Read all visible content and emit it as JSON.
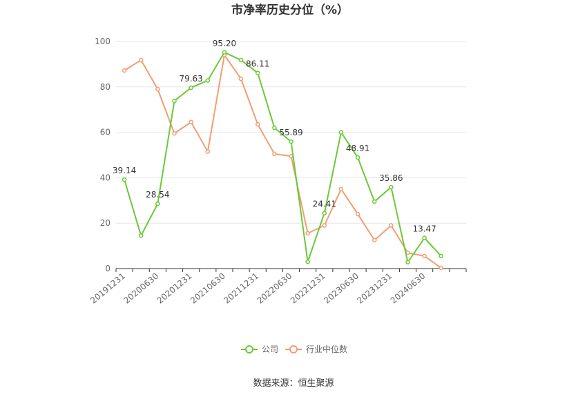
{
  "chart_data": {
    "type": "line",
    "title": "市净率历史分位（%）",
    "source": "数据来源：恒生聚源",
    "ylim": [
      0,
      100
    ],
    "yticks": [
      0,
      20,
      40,
      60,
      80,
      100
    ],
    "grid": true,
    "legend_position": "bottom",
    "x": [
      "20191231",
      "20200331",
      "20200630",
      "20200930",
      "20201231",
      "20210331",
      "20210630",
      "20210930",
      "20211231",
      "20220331",
      "20220630",
      "20220930",
      "20221231",
      "20230331",
      "20230630",
      "20230930",
      "20231231",
      "20240331",
      "20240630",
      "20240930",
      "20241231"
    ],
    "x_tick_labels": [
      "20191231",
      "20200630",
      "20201231",
      "20210630",
      "20211231",
      "20220630",
      "20221231",
      "20230630",
      "20231231",
      "20240630"
    ],
    "series": [
      {
        "name": "公司",
        "color": "#6bc936",
        "values": [
          39.14,
          14.5,
          28.54,
          73.8,
          79.63,
          82.8,
          95.2,
          91.8,
          86.11,
          62.0,
          55.89,
          3.0,
          24.41,
          60.0,
          48.91,
          29.5,
          35.86,
          2.8,
          13.47,
          5.5,
          null
        ],
        "labels": [
          "39.14",
          null,
          "28.54",
          null,
          "79.63",
          null,
          "95.20",
          null,
          "86.11",
          null,
          "55.89",
          null,
          "24.41",
          null,
          "48.91",
          null,
          "35.86",
          null,
          "13.47",
          null,
          null
        ]
      },
      {
        "name": "行业中位数",
        "color": "#f29d73",
        "values": [
          87.2,
          91.8,
          79.0,
          59.5,
          64.5,
          51.5,
          94.0,
          83.5,
          63.5,
          50.5,
          49.5,
          15.5,
          19.0,
          35.0,
          24.0,
          12.5,
          19.0,
          7.0,
          5.5,
          0.3,
          null
        ]
      }
    ]
  }
}
